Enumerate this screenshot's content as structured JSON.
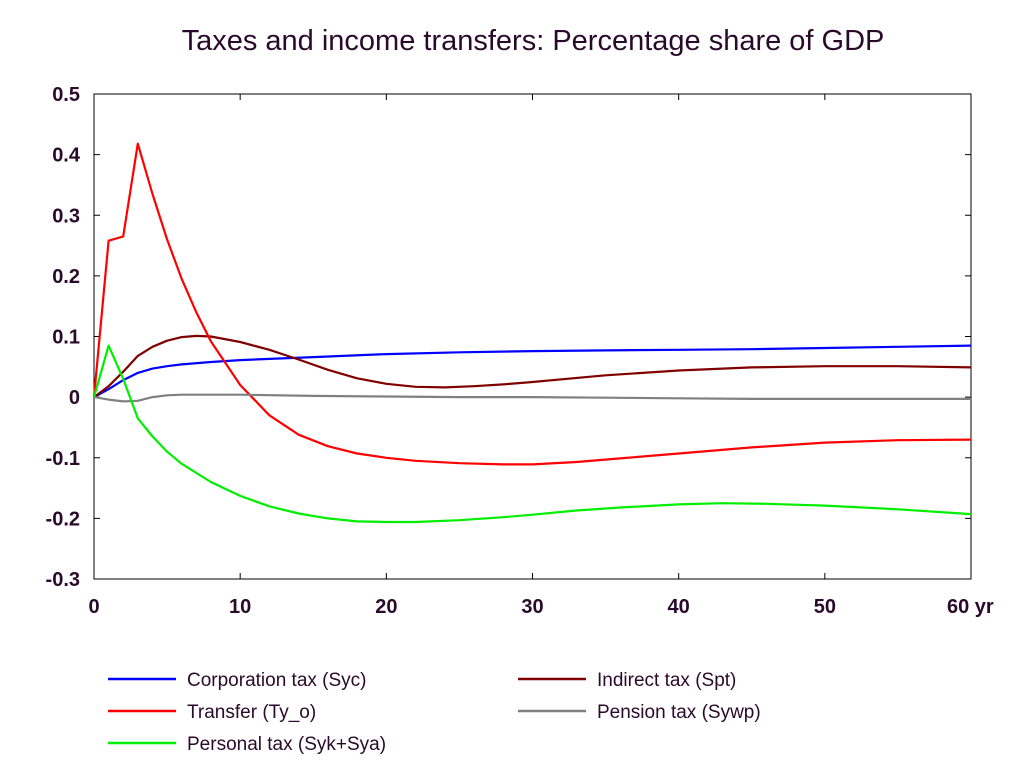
{
  "chart_data": {
    "type": "line",
    "title": "Taxes and income transfers: Percentage share of GDP",
    "xlabel": "",
    "ylabel": "",
    "xlim": [
      0,
      60
    ],
    "ylim": [
      -0.3,
      0.5
    ],
    "x_ticks": [
      0,
      10,
      20,
      30,
      40,
      50,
      60
    ],
    "x_tick_labels": [
      "0",
      "10",
      "20",
      "30",
      "40",
      "50",
      "60 yr"
    ],
    "y_ticks": [
      -0.3,
      -0.2,
      -0.1,
      0,
      0.1,
      0.2,
      0.3,
      0.4,
      0.5
    ],
    "y_tick_labels": [
      "-0.3",
      "-0.2",
      "-0.1",
      "0",
      "0.1",
      "0.2",
      "0.3",
      "0.4",
      "0.5"
    ],
    "grid": false,
    "legend_position": "bottom",
    "series": [
      {
        "name": "Corporation tax (Syc)",
        "color": "#0000ff",
        "x": [
          0,
          1,
          2,
          3,
          4,
          5,
          6,
          8,
          10,
          15,
          20,
          25,
          30,
          35,
          40,
          45,
          50,
          55,
          60
        ],
        "y": [
          0,
          0.013,
          0.028,
          0.04,
          0.047,
          0.051,
          0.054,
          0.058,
          0.061,
          0.066,
          0.071,
          0.074,
          0.076,
          0.077,
          0.078,
          0.079,
          0.081,
          0.083,
          0.085
        ]
      },
      {
        "name": "Indirect tax (Spt)",
        "color": "#800000",
        "x": [
          0,
          1,
          2,
          3,
          4,
          5,
          6,
          7,
          8,
          10,
          12,
          14,
          16,
          18,
          20,
          22,
          24,
          26,
          28,
          30,
          35,
          40,
          45,
          50,
          55,
          60
        ],
        "y": [
          0,
          0.018,
          0.042,
          0.068,
          0.083,
          0.093,
          0.099,
          0.101,
          0.1,
          0.091,
          0.078,
          0.062,
          0.045,
          0.031,
          0.022,
          0.017,
          0.016,
          0.018,
          0.021,
          0.025,
          0.036,
          0.044,
          0.049,
          0.051,
          0.051,
          0.049
        ]
      },
      {
        "name": "Transfer (Ty_o)",
        "color": "#ff0000",
        "x": [
          0,
          1,
          2,
          3,
          4,
          5,
          6,
          7,
          8,
          10,
          12,
          14,
          16,
          18,
          20,
          22,
          25,
          28,
          30,
          33,
          36,
          40,
          45,
          50,
          55,
          60
        ],
        "y": [
          0,
          0.258,
          0.265,
          0.418,
          0.335,
          0.26,
          0.195,
          0.14,
          0.092,
          0.02,
          -0.03,
          -0.062,
          -0.081,
          -0.093,
          -0.1,
          -0.105,
          -0.109,
          -0.111,
          -0.111,
          -0.107,
          -0.101,
          -0.093,
          -0.083,
          -0.075,
          -0.071,
          -0.07
        ]
      },
      {
        "name": "Pension tax (Sywp)",
        "color": "#808080",
        "x": [
          0,
          1,
          2,
          3,
          4,
          5,
          6,
          8,
          10,
          15,
          20,
          25,
          30,
          35,
          40,
          45,
          50,
          55,
          60
        ],
        "y": [
          0,
          -0.004,
          -0.007,
          -0.006,
          0,
          0.003,
          0.004,
          0.004,
          0.004,
          0.002,
          0.001,
          0.0,
          0.0,
          -0.001,
          -0.002,
          -0.003,
          -0.003,
          -0.003,
          -0.003
        ]
      },
      {
        "name": "Personal tax (Syk+Sya)",
        "color": "#00ee00",
        "x": [
          0,
          1,
          2,
          3,
          4,
          5,
          6,
          8,
          10,
          12,
          14,
          16,
          18,
          20,
          22,
          25,
          28,
          30,
          33,
          36,
          40,
          43,
          46,
          50,
          55,
          60
        ],
        "y": [
          0,
          0.085,
          0.03,
          -0.035,
          -0.065,
          -0.09,
          -0.11,
          -0.14,
          -0.163,
          -0.18,
          -0.192,
          -0.2,
          -0.205,
          -0.206,
          -0.206,
          -0.203,
          -0.198,
          -0.194,
          -0.187,
          -0.182,
          -0.177,
          -0.175,
          -0.176,
          -0.179,
          -0.185,
          -0.193
        ]
      }
    ],
    "legend_layout": [
      [
        0,
        1
      ],
      [
        2,
        3
      ],
      [
        4
      ]
    ]
  }
}
